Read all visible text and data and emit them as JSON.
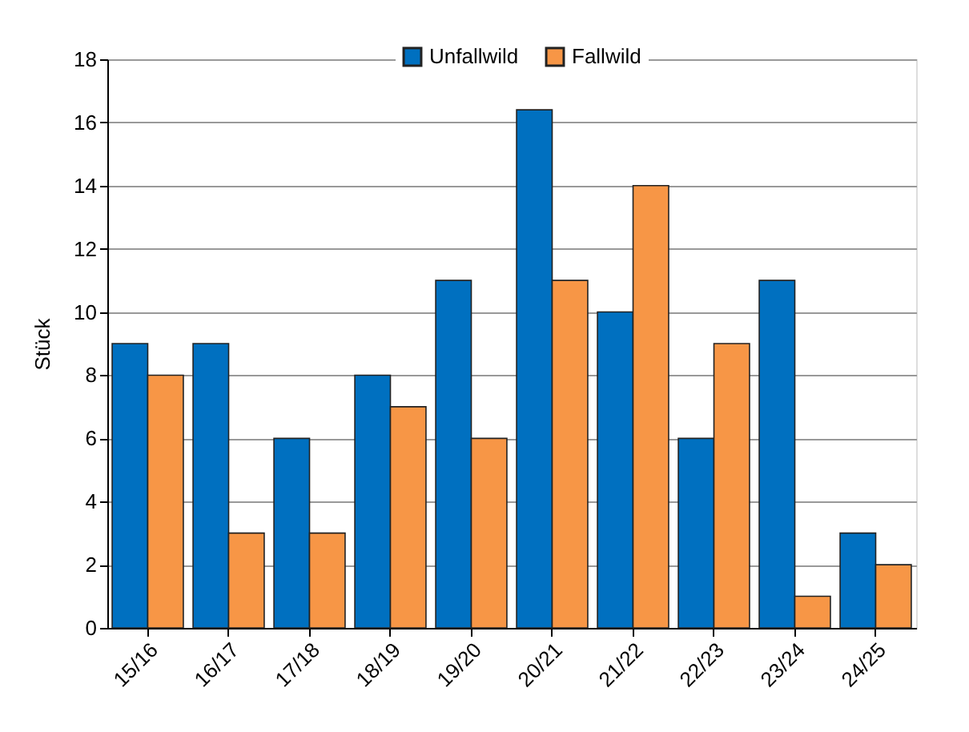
{
  "chart_data": {
    "type": "bar",
    "ylabel": "Stück",
    "categories": [
      "15/16",
      "16/17",
      "17/18",
      "18/19",
      "19/20",
      "20/21",
      "21/22",
      "22/23",
      "23/24",
      "24/25"
    ],
    "series": [
      {
        "name": "Unfallwild",
        "color": "#0070c0",
        "values": [
          9,
          9,
          6,
          8,
          11,
          16.4,
          10,
          6,
          11,
          3
        ]
      },
      {
        "name": "Fallwild",
        "color": "#f79646",
        "values": [
          8,
          3,
          3,
          7,
          6,
          11,
          14,
          9,
          1,
          2
        ]
      }
    ],
    "ylim": [
      0,
      18
    ],
    "yticks": [
      0,
      2,
      4,
      6,
      8,
      10,
      12,
      14,
      16,
      18
    ],
    "grid": "y",
    "legend": "top"
  }
}
